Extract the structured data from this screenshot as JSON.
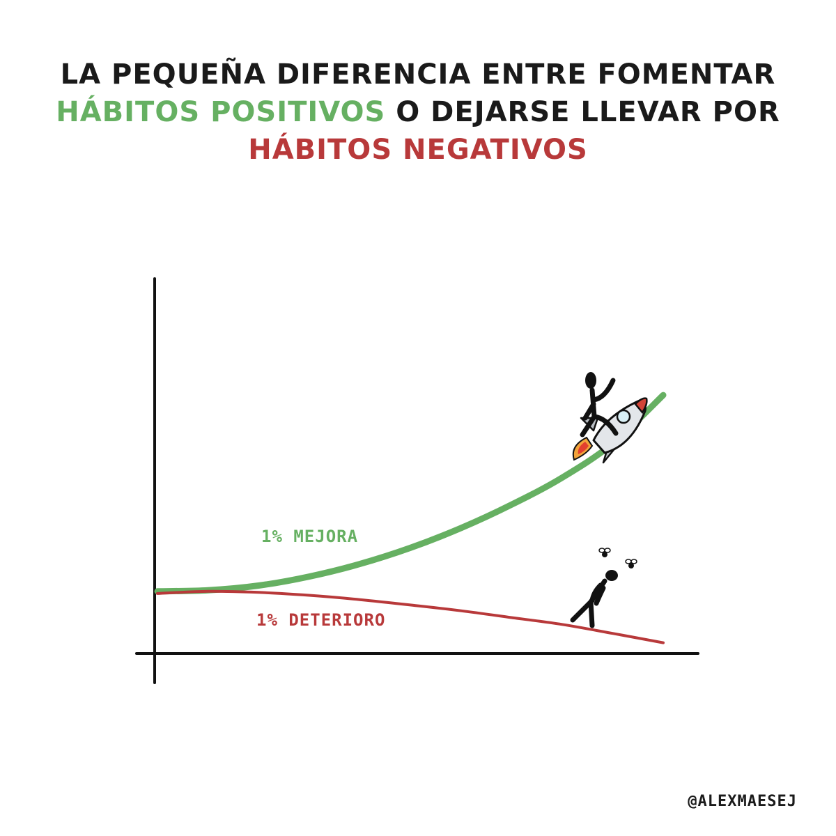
{
  "title": {
    "line1": "LA PEQUEÑA DIFERENCIA ENTRE FOMENTAR",
    "line2_highlight": "HÁBITOS POSITIVOS",
    "line2_rest": " O DEJARSE LLEVAR POR",
    "line3_highlight": "HÁBITOS NEGATIVOS"
  },
  "colors": {
    "positive": "#66b062",
    "negative": "#b8393a",
    "ink": "#111111"
  },
  "credit": "@ALEXMAESEJ",
  "chart_data": {
    "type": "line",
    "title": "",
    "xlabel": "",
    "ylabel": "",
    "xlim": [
      0,
      100
    ],
    "ylim": [
      0,
      100
    ],
    "grid": false,
    "axis_ticks": false,
    "series": [
      {
        "name": "1% MEJORA",
        "color": "#66b062",
        "x": [
          0,
          10,
          20,
          30,
          40,
          50,
          60,
          70,
          80,
          90,
          100
        ],
        "y": [
          16.9,
          17.2,
          18.5,
          21.0,
          24.5,
          29.0,
          34.5,
          41.0,
          48.5,
          58.0,
          71.5
        ]
      },
      {
        "name": "1% DETERIORO",
        "color": "#b8393a",
        "x": [
          0,
          10,
          20,
          30,
          40,
          50,
          60,
          70,
          80,
          90,
          100
        ],
        "y": [
          16.3,
          16.9,
          16.6,
          15.8,
          14.6,
          13.1,
          11.5,
          9.6,
          7.7,
          5.2,
          2.6
        ]
      }
    ],
    "annotations": [
      {
        "text": "1% MEJORA",
        "series": 0
      },
      {
        "text": "1% DETERIORO",
        "series": 1
      }
    ]
  }
}
